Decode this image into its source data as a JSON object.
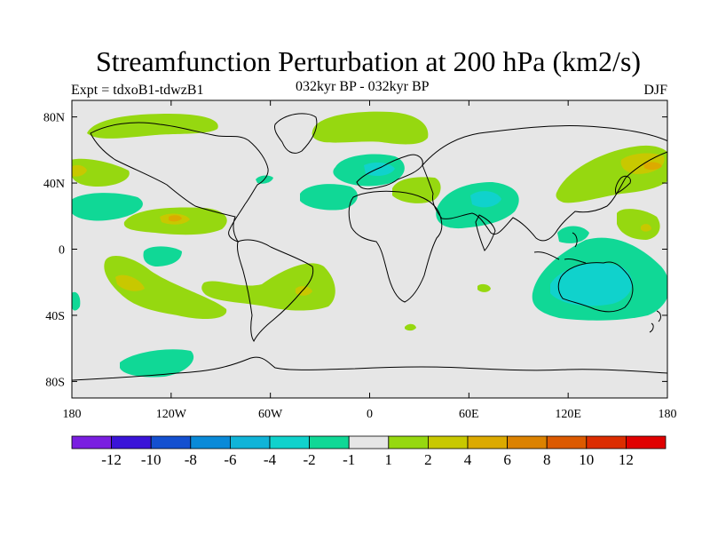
{
  "title": "Streamfunction Perturbation at 200 hPa (km2/s)",
  "subtitle": "032kyr BP - 032kyr BP",
  "left_label": "Expt = tdxoB1-tdwzB1",
  "right_label": "DJF",
  "map": {
    "lon_ticks": [
      "180",
      "120W",
      "60W",
      "0",
      "60E",
      "120E",
      "180"
    ],
    "lat_ticks": [
      "80N",
      "40N",
      "0",
      "40S",
      "80S"
    ],
    "land_color": "#e6e6e6",
    "coast_color": "#000000"
  },
  "colorbar": {
    "colors": [
      "#7a1ee0",
      "#3a14d8",
      "#1450d0",
      "#0a8ad8",
      "#10b4d8",
      "#10d2cc",
      "#10d896",
      "#e6e6e6",
      "#96d810",
      "#c8c800",
      "#dcaa00",
      "#dc8200",
      "#dc5a00",
      "#dc2d00",
      "#e00000"
    ],
    "labels": [
      "-12",
      "-10",
      "-8",
      "-6",
      "-4",
      "-2",
      "-1",
      "1",
      "2",
      "4",
      "6",
      "8",
      "10",
      "12"
    ]
  },
  "chart_data": {
    "type": "heatmap",
    "title": "Streamfunction Perturbation at 200 hPa (km2/s)",
    "variable": "streamfunction perturbation",
    "units": "km2/s",
    "level": "200 hPa",
    "season": "DJF",
    "x_range": [
      -180,
      180
    ],
    "y_range": [
      -90,
      90
    ],
    "contour_levels": [
      -12,
      -10,
      -8,
      -6,
      -4,
      -2,
      -1,
      1,
      2,
      4,
      6,
      8,
      10,
      12
    ],
    "features": [
      {
        "region": "North Atlantic / Greenland",
        "sign": "positive",
        "approx_value": 2
      },
      {
        "region": "Europe",
        "sign": "negative",
        "approx_value": -2
      },
      {
        "region": "Middle East / Arabia",
        "sign": "negative",
        "approx_value": -2
      },
      {
        "region": "Northwest Pacific / Japan",
        "sign": "positive",
        "approx_value": 4
      },
      {
        "region": "Australia",
        "sign": "negative",
        "approx_value": -2
      },
      {
        "region": "Subtropical South Pacific",
        "sign": "positive",
        "approx_value": 4
      },
      {
        "region": "South Atlantic / Brazil",
        "sign": "positive",
        "approx_value": 2
      },
      {
        "region": "Eastern North Pacific",
        "sign": "positive",
        "approx_value": 4
      }
    ]
  }
}
